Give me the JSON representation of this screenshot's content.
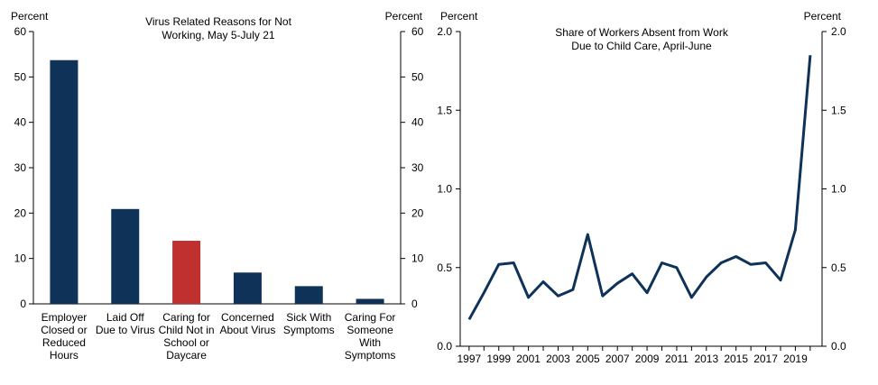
{
  "chart_data": [
    {
      "type": "bar",
      "title": [
        "Virus Related Reasons for Not",
        "Working, May 5-July 21"
      ],
      "ylabel_left": "Percent",
      "ylabel_right": "Percent",
      "ylim": [
        0,
        60
      ],
      "yticks": [
        "0",
        "10",
        "20",
        "30",
        "40",
        "50",
        "60"
      ],
      "categories": [
        [
          "Employer",
          "Closed or",
          "Reduced",
          "Hours"
        ],
        [
          "Laid Off",
          "Due to Virus"
        ],
        [
          "Caring for",
          "Child Not in",
          "School or",
          "Daycare"
        ],
        [
          "Concerned",
          "About Virus"
        ],
        [
          "Sick With",
          "Symptoms"
        ],
        [
          "Caring For",
          "Someone",
          "With",
          "Symptoms"
        ]
      ],
      "values": [
        53.7,
        20.9,
        13.9,
        6.9,
        3.9,
        1.1
      ],
      "colors": [
        "#0f3259",
        "#0f3259",
        "#c0302e",
        "#0f3259",
        "#0f3259",
        "#0f3259"
      ]
    },
    {
      "type": "line",
      "title": [
        "Share of Workers Absent from Work",
        "Due to Child Care, April-June"
      ],
      "ylabel_left": "Percent",
      "ylabel_right": "Percent",
      "ylim": [
        0,
        2.0
      ],
      "yticks": [
        "0.0",
        "0.5",
        "1.0",
        "1.5",
        "2.0"
      ],
      "xticks": [
        "1997",
        "1999",
        "2001",
        "2003",
        "2005",
        "2007",
        "2009",
        "2011",
        "2013",
        "2015",
        "2017",
        "2019"
      ],
      "x": [
        1997,
        1998,
        1999,
        2000,
        2001,
        2002,
        2003,
        2004,
        2005,
        2006,
        2007,
        2008,
        2009,
        2010,
        2011,
        2012,
        2013,
        2014,
        2015,
        2016,
        2017,
        2018,
        2019,
        2020
      ],
      "values": [
        0.17,
        0.34,
        0.52,
        0.53,
        0.31,
        0.41,
        0.32,
        0.36,
        0.71,
        0.32,
        0.4,
        0.46,
        0.34,
        0.53,
        0.5,
        0.31,
        0.44,
        0.53,
        0.57,
        0.52,
        0.53,
        0.42,
        0.74,
        1.85
      ],
      "color": "#0f3259"
    }
  ]
}
